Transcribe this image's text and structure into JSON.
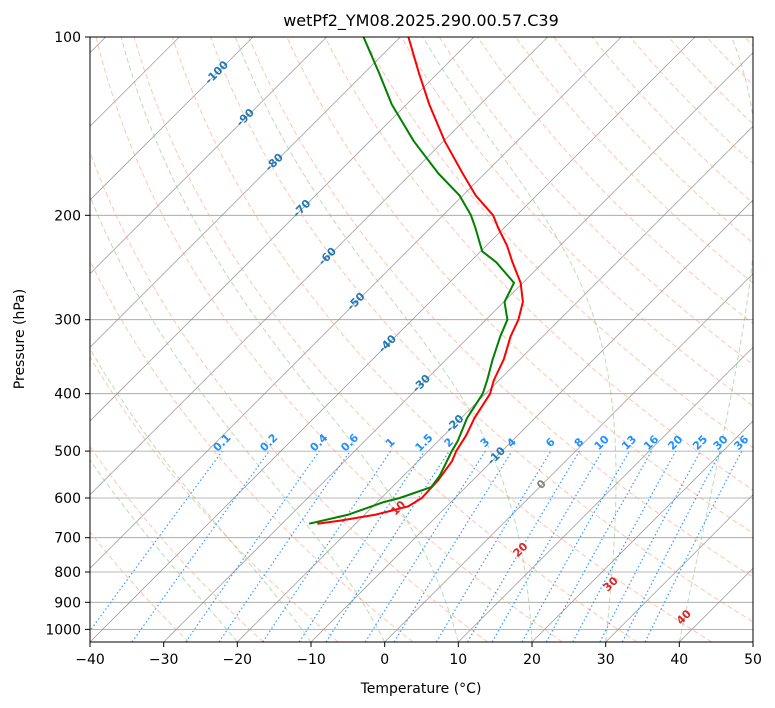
{
  "chart_data": {
    "type": "line",
    "chart_kind": "skew-T log-P diagram",
    "title": "wetPf2_YM08.2025.290.00.57.C39",
    "xlabel": "Temperature (°C)",
    "ylabel": "Pressure (hPa)",
    "xlim": [
      -40,
      50
    ],
    "ylim_hPa": [
      1050,
      100
    ],
    "x_ticks": [
      -40,
      -30,
      -20,
      -10,
      0,
      10,
      20,
      30,
      40,
      50
    ],
    "y_ticks": [
      100,
      200,
      300,
      400,
      500,
      600,
      700,
      800,
      900,
      1000
    ],
    "x_tick_labels": [
      "−40",
      "−30",
      "−20",
      "−10",
      "0",
      "10",
      "20",
      "30",
      "40",
      "50"
    ],
    "y_tick_labels": [
      "100",
      "200",
      "300",
      "400",
      "500",
      "600",
      "700",
      "800",
      "900",
      "1000"
    ],
    "colors": {
      "temperature": "#ff0000",
      "dewpoint": "#008000",
      "dry_adiabat": "#ff9f80",
      "moist_adiabat": "#7fbf7f",
      "mixing_ratio": "#1e90ff",
      "isotherm": "#808080",
      "isobar": "#808080",
      "isotherm_label": "#1f77b4",
      "moist_label": "#d62728",
      "zero_label": "#808080"
    },
    "series": [
      {
        "name": "Temperature",
        "pressure": [
          663,
          655,
          640,
          620,
          600,
          560,
          520,
          500,
          470,
          440,
          400,
          380,
          350,
          320,
          300,
          280,
          260,
          240,
          225,
          210,
          200,
          185,
          170,
          150,
          130,
          115,
          100
        ],
        "values": [
          -25.2,
          -22.5,
          -18.5,
          -15.2,
          -14.5,
          -14.7,
          -15.4,
          -16.2,
          -17.0,
          -18.2,
          -19.4,
          -20.7,
          -22.2,
          -24.4,
          -25.6,
          -27.4,
          -30.3,
          -34.2,
          -37.2,
          -40.8,
          -43.2,
          -48.3,
          -53.0,
          -59.8,
          -66.9,
          -72.6,
          -78.9
        ]
      },
      {
        "name": "Dewpoint",
        "pressure": [
          663,
          640,
          610,
          600,
          575,
          550,
          520,
          500,
          480,
          440,
          400,
          380,
          350,
          320,
          300,
          280,
          260,
          240,
          230,
          210,
          200,
          185,
          170,
          150,
          130,
          115,
          100
        ],
        "values": [
          -26.3,
          -22.2,
          -19.2,
          -17.5,
          -14.7,
          -15.1,
          -16.1,
          -16.8,
          -17.4,
          -19.2,
          -20.4,
          -21.6,
          -23.7,
          -25.8,
          -27.1,
          -29.9,
          -31.2,
          -36.4,
          -39.8,
          -43.9,
          -46.2,
          -50.5,
          -56.3,
          -64.0,
          -72.0,
          -78.0,
          -85.0
        ]
      }
    ],
    "isotherm_labels": [
      "-100",
      "-90",
      "-80",
      "-70",
      "-60",
      "-50",
      "-40",
      "-30",
      "-20",
      "-10",
      "0"
    ],
    "isotherm_label_values": [
      -100,
      -90,
      -80,
      -70,
      -60,
      -50,
      -40,
      -30,
      -20,
      -10,
      0
    ],
    "moist_adiabat_labels": [
      "10",
      "20",
      "30",
      "40"
    ],
    "moist_adiabat_label_values": [
      10,
      20,
      30,
      40
    ],
    "mixing_ratio_labels": [
      "0.1",
      "0.2",
      "0.4",
      "0.6",
      "1",
      "1.5",
      "2",
      "3",
      "4",
      "6",
      "8",
      "10",
      "13",
      "16",
      "20",
      "25",
      "30",
      "36"
    ],
    "mixing_ratio_values": [
      0.1,
      0.2,
      0.4,
      0.6,
      1,
      1.5,
      2,
      3,
      4,
      6,
      8,
      10,
      13,
      16,
      20,
      25,
      30,
      36
    ],
    "background_lines": {
      "isotherms_degC": [
        -190,
        -180,
        -170,
        -160,
        -150,
        -140,
        -130,
        -120,
        -110,
        -100,
        -90,
        -80,
        -70,
        -60,
        -50,
        -40,
        -30,
        -20,
        -10,
        0,
        10,
        20,
        30,
        40,
        50
      ],
      "dry_adiabats_degC": [
        -30,
        -20,
        -10,
        0,
        10,
        20,
        30,
        40,
        50,
        60,
        70,
        80,
        90,
        100,
        110,
        120,
        130,
        140,
        150,
        160,
        170,
        180,
        190,
        200,
        210
      ],
      "moist_adiabats_degC": [
        -20,
        -10,
        0,
        10,
        20,
        30,
        40
      ],
      "isobars_hPa": [
        100,
        200,
        300,
        400,
        500,
        600,
        700,
        800,
        900,
        1000
      ]
    }
  }
}
